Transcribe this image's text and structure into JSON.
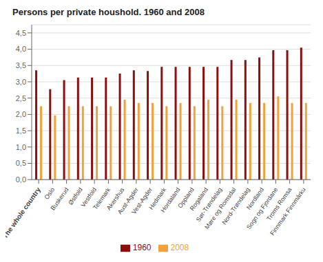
{
  "chart_data": {
    "type": "bar",
    "title": "Persons per private houshold. 1960 and 2008",
    "categories": [
      "The whole country",
      "Oslo",
      "Buskerud",
      "Østfold",
      "Vestfold",
      "Telemark",
      "Akershus",
      "Aust-Agder",
      "Vest-Agder",
      "Hedmark",
      "Hordaland",
      "Oppland",
      "Rogaland",
      "Sør-Trøndelag",
      "Møre og Romsdal",
      "Nord-Trøndelag",
      "Nordland",
      "Sogn og Fjordane",
      "Troms Romsa",
      "Finnmark Finnmárku"
    ],
    "series": [
      {
        "name": "1960",
        "color": "#8B0F0F",
        "values": [
          3.35,
          2.77,
          3.05,
          3.13,
          3.13,
          3.13,
          3.25,
          3.35,
          3.33,
          3.46,
          3.46,
          3.46,
          3.46,
          3.46,
          3.67,
          3.67,
          3.75,
          3.97,
          3.97,
          4.05
        ]
      },
      {
        "name": "2008",
        "color": "#F2A23C",
        "values": [
          2.25,
          1.97,
          2.25,
          2.25,
          2.25,
          2.25,
          2.45,
          2.35,
          2.35,
          2.25,
          2.35,
          2.25,
          2.45,
          2.25,
          2.45,
          2.35,
          2.35,
          2.55,
          2.35,
          2.35
        ]
      }
    ],
    "ylim": [
      0,
      4.75
    ],
    "yticks": [
      {
        "value": 0.0,
        "label": "0,0"
      },
      {
        "value": 0.5,
        "label": "0,5"
      },
      {
        "value": 1.0,
        "label": "1,0"
      },
      {
        "value": 1.5,
        "label": "1,5"
      },
      {
        "value": 2.0,
        "label": "2,0"
      },
      {
        "value": 2.5,
        "label": "2,5"
      },
      {
        "value": 3.0,
        "label": "3,0"
      },
      {
        "value": 3.5,
        "label": "3,5"
      },
      {
        "value": 4.0,
        "label": "4,0"
      },
      {
        "value": 4.5,
        "label": "4,5"
      }
    ],
    "grid": true,
    "legend": "bottom"
  }
}
